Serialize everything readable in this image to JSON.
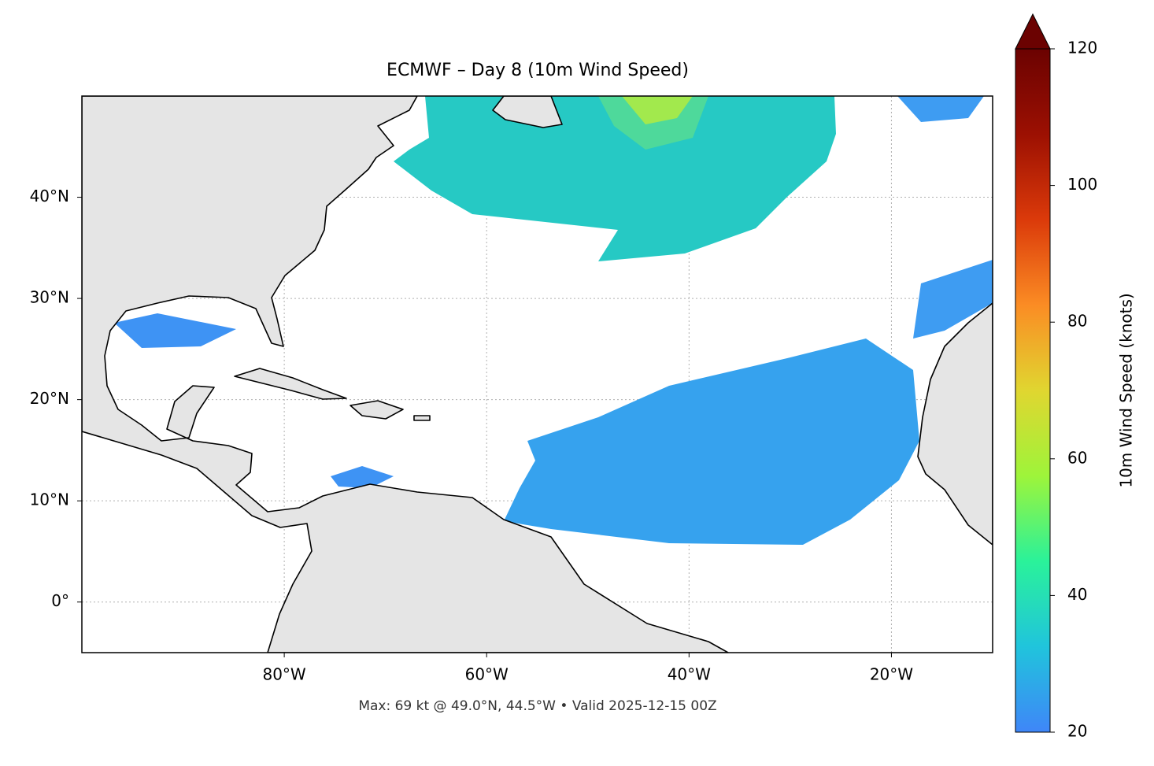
{
  "map": {
    "title": "ECMWF – Day 8 (10m Wind Speed)",
    "xlim": [
      -100,
      -10
    ],
    "ylim": [
      -5,
      50
    ],
    "xticks": [
      {
        "value": -80,
        "label": "80°W"
      },
      {
        "value": -60,
        "label": "60°W"
      },
      {
        "value": -40,
        "label": "40°W"
      },
      {
        "value": -20,
        "label": "20°W"
      }
    ],
    "yticks": [
      {
        "value": 0,
        "label": "0°"
      },
      {
        "value": 10,
        "label": "10°N"
      },
      {
        "value": 20,
        "label": "20°N"
      },
      {
        "value": 30,
        "label": "30°N"
      },
      {
        "value": 40,
        "label": "40°N"
      }
    ],
    "grid": true,
    "footer": "Max: 69 kt @ 49.0°N, 44.5°W • Valid 2025-12-15 00Z",
    "colorbar": {
      "label": "10m Wind Speed (knots)",
      "lim": [
        20,
        120
      ],
      "ticks": [
        20,
        40,
        60,
        80,
        100,
        120
      ],
      "colors": [
        "#3f86f8",
        "#20c4dc",
        "#2af29a",
        "#9ef43a",
        "#e0d630",
        "#fb8c24",
        "#db3a0a",
        "#9c1002",
        "#6b0201"
      ]
    }
  }
}
